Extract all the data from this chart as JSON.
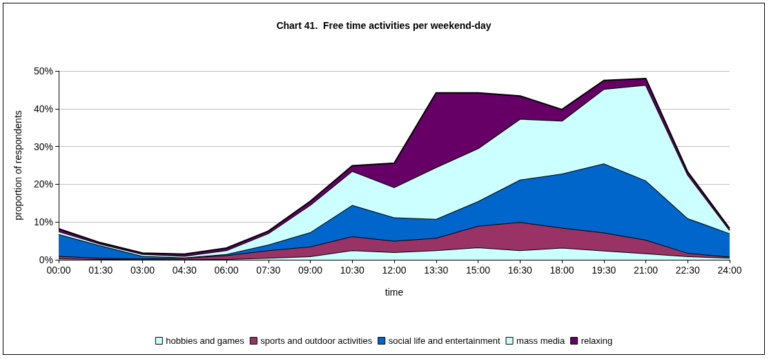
{
  "chart_data": {
    "type": "area",
    "stacked": true,
    "title": "Chart 41.  Free time activities per weekend-day",
    "xlabel": "time",
    "ylabel": "proportion of respondents",
    "categories": [
      "00:00",
      "01:30",
      "03:00",
      "04:30",
      "06:00",
      "07:30",
      "09:00",
      "10:30",
      "12:00",
      "13:30",
      "15:00",
      "16:30",
      "18:00",
      "19:30",
      "21:00",
      "22:30",
      "24:00"
    ],
    "series": [
      {
        "name": "hobbies and games",
        "color": "#ccffff",
        "values": [
          0.3,
          0.2,
          0.1,
          0.1,
          0.2,
          0.5,
          0.9,
          2.5,
          2.0,
          2.5,
          3.3,
          2.5,
          3.2,
          2.4,
          1.7,
          0.9,
          0.5
        ]
      },
      {
        "name": "sports and outdoor activities",
        "color": "#993366",
        "values": [
          0.7,
          0.3,
          0.2,
          0.4,
          1.0,
          2.0,
          2.6,
          3.7,
          3.0,
          3.3,
          5.7,
          7.5,
          5.3,
          4.8,
          3.6,
          0.9,
          0.3
        ]
      },
      {
        "name": "social life and entertainment",
        "color": "#0066cc",
        "values": [
          5.8,
          3.3,
          0.7,
          0.1,
          0.3,
          1.5,
          3.8,
          8.3,
          6.2,
          5.0,
          6.5,
          11.2,
          14.3,
          18.3,
          15.7,
          9.2,
          6.2
        ]
      },
      {
        "name": "mass media",
        "color": "#ccffff",
        "values": [
          0.7,
          0.4,
          0.5,
          0.4,
          1.0,
          3.0,
          7.2,
          9.0,
          8.0,
          13.7,
          14.0,
          16.1,
          14.0,
          19.7,
          25.3,
          11.5,
          0.8
        ]
      },
      {
        "name": "relaxing",
        "color": "#660066",
        "values": [
          0.7,
          0.3,
          0.3,
          0.5,
          0.6,
          0.6,
          1.0,
          1.4,
          6.4,
          19.7,
          14.7,
          6.1,
          3.0,
          2.3,
          1.7,
          0.8,
          0.5
        ]
      }
    ],
    "ylim": [
      0,
      50
    ],
    "yticks": [
      {
        "value": 0,
        "label": "0%"
      },
      {
        "value": 10,
        "label": "10%"
      },
      {
        "value": 20,
        "label": "20%"
      },
      {
        "value": 30,
        "label": "30%"
      },
      {
        "value": 40,
        "label": "40%"
      },
      {
        "value": 50,
        "label": "50%"
      }
    ],
    "grid": "y",
    "legend": "bottom"
  }
}
